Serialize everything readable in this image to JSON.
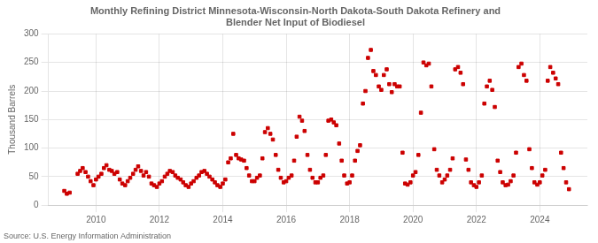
{
  "chart_data": {
    "type": "scatter",
    "title": "Monthly Refining District Minnesota-Wisconsin-North Dakota-South Dakota Refinery and\nBlender Net Input of Biodiesel",
    "ylabel": "Thousand Barrels",
    "source": "Source: U.S. Energy Information Administration",
    "color": "#CC0000",
    "marker": "square",
    "grid": true,
    "xlim": [
      2008.5,
      2025.5
    ],
    "xticks": [
      2010,
      2012,
      2014,
      2016,
      2018,
      2020,
      2022,
      2024
    ],
    "ylim": [
      0,
      300
    ],
    "yticks": [
      0,
      50,
      100,
      150,
      200,
      250,
      300
    ],
    "x": [
      2009.0,
      2009.08,
      2009.17,
      2009.42,
      2009.5,
      2009.58,
      2009.67,
      2009.75,
      2009.83,
      2009.92,
      2010.0,
      2010.08,
      2010.17,
      2010.25,
      2010.33,
      2010.42,
      2010.5,
      2010.58,
      2010.67,
      2010.75,
      2010.83,
      2010.92,
      2011.0,
      2011.08,
      2011.17,
      2011.25,
      2011.33,
      2011.42,
      2011.5,
      2011.58,
      2011.67,
      2011.75,
      2011.83,
      2011.92,
      2012.0,
      2012.08,
      2012.17,
      2012.25,
      2012.33,
      2012.42,
      2012.5,
      2012.58,
      2012.67,
      2012.75,
      2012.83,
      2012.92,
      2013.0,
      2013.08,
      2013.17,
      2013.25,
      2013.33,
      2013.42,
      2013.5,
      2013.58,
      2013.67,
      2013.75,
      2013.83,
      2013.92,
      2014.0,
      2014.08,
      2014.17,
      2014.25,
      2014.33,
      2014.42,
      2014.5,
      2014.58,
      2014.67,
      2014.75,
      2014.83,
      2014.92,
      2015.0,
      2015.08,
      2015.17,
      2015.25,
      2015.33,
      2015.42,
      2015.5,
      2015.58,
      2015.67,
      2015.75,
      2015.83,
      2015.92,
      2016.0,
      2016.08,
      2016.17,
      2016.25,
      2016.33,
      2016.42,
      2016.5,
      2016.58,
      2016.67,
      2016.75,
      2016.83,
      2016.92,
      2017.0,
      2017.08,
      2017.17,
      2017.25,
      2017.33,
      2017.42,
      2017.5,
      2017.58,
      2017.67,
      2017.75,
      2017.83,
      2017.92,
      2018.0,
      2018.08,
      2018.17,
      2018.25,
      2018.33,
      2018.42,
      2018.5,
      2018.58,
      2018.67,
      2018.75,
      2018.83,
      2018.92,
      2019.0,
      2019.08,
      2019.17,
      2019.25,
      2019.33,
      2019.42,
      2019.5,
      2019.58,
      2019.67,
      2019.75,
      2019.83,
      2019.92,
      2020.0,
      2020.08,
      2020.17,
      2020.25,
      2020.33,
      2020.42,
      2020.5,
      2020.58,
      2020.67,
      2020.75,
      2020.83,
      2020.92,
      2021.0,
      2021.08,
      2021.17,
      2021.25,
      2021.33,
      2021.42,
      2021.5,
      2021.58,
      2021.67,
      2021.75,
      2021.83,
      2021.92,
      2022.0,
      2022.08,
      2022.17,
      2022.25,
      2022.33,
      2022.42,
      2022.5,
      2022.58,
      2022.67,
      2022.75,
      2022.83,
      2022.92,
      2023.0,
      2023.08,
      2023.17,
      2023.25,
      2023.33,
      2023.42,
      2023.5,
      2023.58,
      2023.67,
      2023.75,
      2023.83,
      2023.92,
      2024.0,
      2024.08,
      2024.17,
      2024.25,
      2024.33,
      2024.42,
      2024.5,
      2024.58,
      2024.67,
      2024.75,
      2024.83,
      2024.92
    ],
    "values": [
      25,
      20,
      22,
      55,
      60,
      65,
      58,
      50,
      42,
      35,
      45,
      50,
      55,
      65,
      70,
      62,
      60,
      55,
      58,
      45,
      38,
      35,
      42,
      48,
      55,
      62,
      68,
      60,
      52,
      58,
      50,
      38,
      35,
      32,
      38,
      42,
      50,
      55,
      60,
      58,
      52,
      48,
      45,
      40,
      35,
      32,
      38,
      42,
      48,
      52,
      58,
      60,
      55,
      50,
      45,
      40,
      35,
      32,
      38,
      45,
      75,
      82,
      125,
      88,
      82,
      80,
      78,
      65,
      52,
      42,
      42,
      48,
      52,
      82,
      128,
      135,
      125,
      115,
      88,
      62,
      48,
      40,
      42,
      48,
      52,
      78,
      120,
      155,
      148,
      130,
      88,
      62,
      48,
      40,
      40,
      48,
      52,
      88,
      148,
      150,
      145,
      140,
      108,
      78,
      52,
      38,
      40,
      52,
      78,
      95,
      105,
      178,
      200,
      258,
      272,
      235,
      228,
      208,
      202,
      228,
      238,
      212,
      198,
      212,
      208,
      208,
      92,
      38,
      36,
      40,
      52,
      58,
      88,
      162,
      250,
      245,
      248,
      208,
      98,
      62,
      52,
      40,
      45,
      52,
      62,
      82,
      238,
      242,
      232,
      212,
      80,
      62,
      40,
      35,
      32,
      40,
      52,
      178,
      208,
      218,
      202,
      172,
      78,
      58,
      40,
      35,
      36,
      42,
      52,
      92,
      242,
      248,
      228,
      218,
      98,
      65,
      40,
      36,
      40,
      52,
      62,
      218,
      242,
      232,
      222,
      212,
      92,
      65,
      40,
      28
    ]
  }
}
